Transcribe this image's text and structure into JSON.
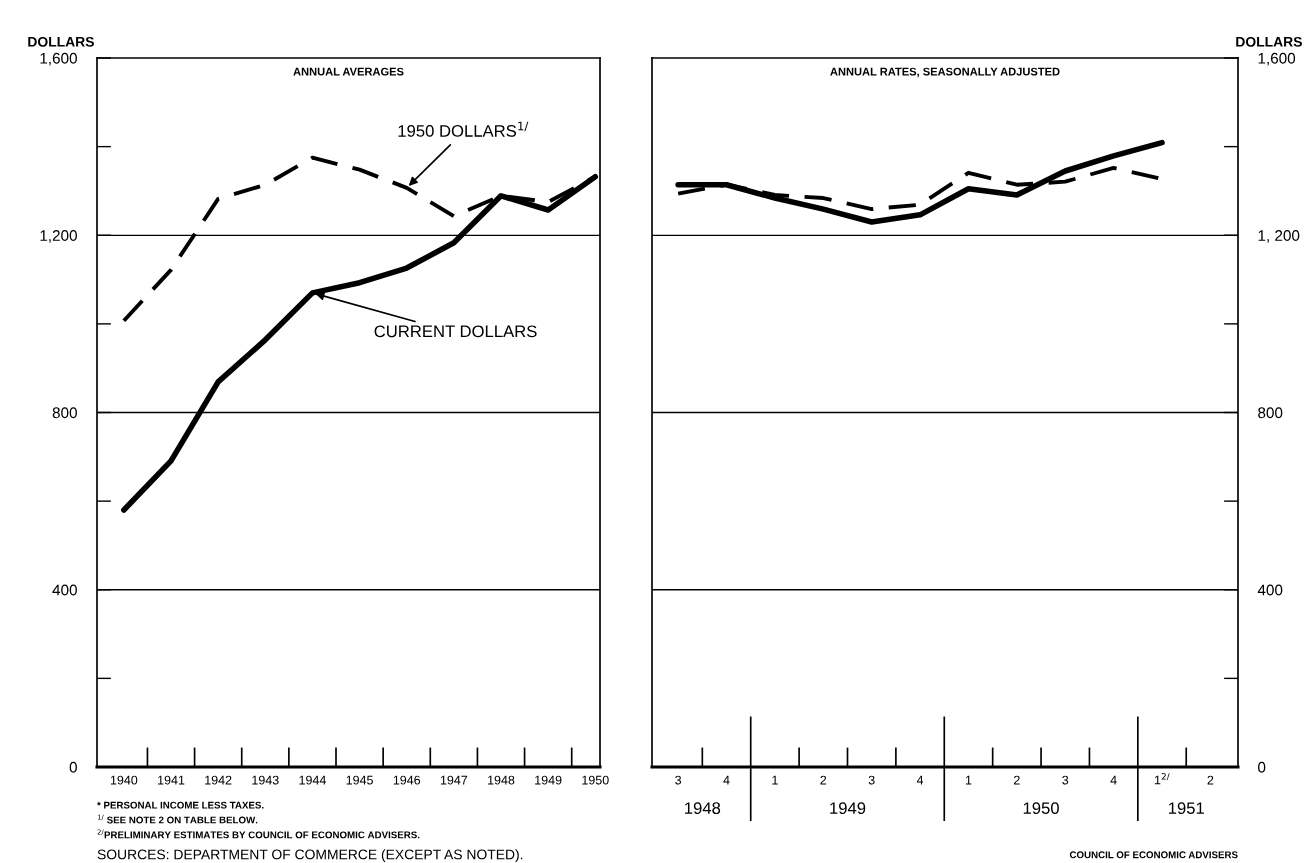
{
  "chart_data": [
    {
      "type": "line",
      "title": "ANNUAL AVERAGES",
      "ylabel": "DOLLARS",
      "categories": [
        "1940",
        "1941",
        "1942",
        "1943",
        "1944",
        "1945",
        "1946",
        "1947",
        "1948",
        "1949",
        "1950"
      ],
      "series": [
        {
          "color": "#000000",
          "line_style": "solid",
          "values": [
            580,
            691,
            869,
            964,
            1070,
            1093,
            1126,
            1183,
            1289,
            1257,
            1332
          ]
        },
        {
          "color": "#000000",
          "line_style": "dashed",
          "values": [
            1007,
            1122,
            1282,
            1314,
            1375,
            1348,
            1307,
            1243,
            1289,
            1275,
            1332
          ]
        }
      ],
      "ylim": [
        0,
        1600
      ],
      "yticks": [
        0,
        {
          "value": 200,
          "label": null
        },
        400,
        {
          "value": 600,
          "label": null
        },
        800,
        {
          "value": 1000,
          "label": null
        },
        {
          "value": 1200,
          "label": "1,200"
        },
        {
          "value": 1400,
          "label": null
        },
        {
          "value": 1600,
          "label": "1,600"
        }
      ],
      "grid": "y",
      "legend": false,
      "marker": "none",
      "annotations": [
        {
          "text": "1950 DOLLARS$^{1/}$",
          "x": "1946",
          "y": 1307
        },
        {
          "text": "CURRENT DOLLARS",
          "x": "1944",
          "y": 1070
        },
        "* PERSONAL INCOME LESS TAXES.",
        "$^{1/}$ SEE NOTE 2 ON TABLE BELOW.",
        "$^{2/}$PRELIMINARY ESTIMATES BY COUNCIL OF ECONOMIC ADVISERS.",
        "SOURCES: DEPARTMENT OF COMMERCE (EXCEPT AS NOTED)."
      ]
    },
    {
      "type": "line",
      "title": "ANNUAL RATES, SEASONALLY ADJUSTED",
      "ylabel": "DOLLARS",
      "categories": [
        "3",
        "4",
        "1",
        "2",
        "3",
        "4",
        "1",
        "2",
        "3",
        "4",
        "1$^{2/}$",
        "2"
      ],
      "series": [
        {
          "color": "#000000",
          "line_style": "solid",
          "values": [
            1314,
            1314,
            1284,
            1259,
            1230,
            1246,
            1305,
            1291,
            1345,
            1379,
            1409,
            null
          ]
        },
        {
          "color": "#000000",
          "line_style": "dashed",
          "values": [
            1294,
            1314,
            1291,
            1284,
            1259,
            1269,
            1341,
            1314,
            1321,
            1352,
            1327,
            null
          ]
        }
      ],
      "ylim": [
        0,
        1600
      ],
      "yticks": [
        0,
        {
          "value": 200,
          "label": null
        },
        400,
        {
          "value": 600,
          "label": null
        },
        800,
        {
          "value": 1000,
          "label": null
        },
        {
          "value": 1200,
          "label": "1, 200"
        },
        {
          "value": 1400,
          "label": null
        },
        {
          "value": 1600,
          "label": "1,600"
        }
      ],
      "grid": "y",
      "legend": false,
      "marker": "none",
      "annotations": [
        "1948",
        "1949",
        "1950",
        "1951",
        "COUNCIL OF ECONOMIC ADVISERS"
      ]
    }
  ]
}
